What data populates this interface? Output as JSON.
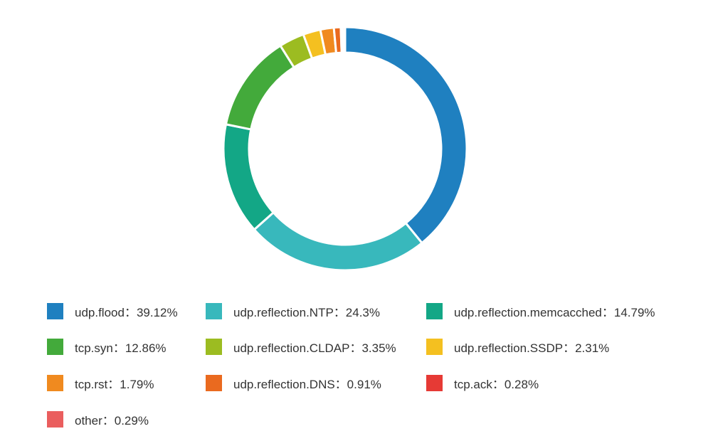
{
  "chart_data": {
    "type": "pie",
    "title": "",
    "categories": [
      "udp.flood",
      "udp.reflection.NTP",
      "udp.reflection.memcacched",
      "tcp.syn",
      "udp.reflection.CLDAP",
      "udp.reflection.SSDP",
      "tcp.rst",
      "udp.reflection.DNS",
      "tcp.ack",
      "other"
    ],
    "values": [
      39.12,
      24.3,
      14.79,
      12.86,
      3.35,
      2.31,
      1.79,
      0.91,
      0.28,
      0.29
    ],
    "colors": [
      "#1f80c0",
      "#38b8bc",
      "#13a786",
      "#43aa3b",
      "#9cbc21",
      "#f4c020",
      "#f08a1f",
      "#ea6a1f",
      "#e63a35",
      "#ea5e5e"
    ],
    "donut": true,
    "start_angle": "12 o'clock",
    "direction": "clockwise",
    "legend_position": "bottom"
  },
  "legend": {
    "items": [
      {
        "label": "udp.flood：39.12%"
      },
      {
        "label": "udp.reflection.NTP：24.3%"
      },
      {
        "label": "udp.reflection.memcacched：14.79%"
      },
      {
        "label": "tcp.syn：12.86%"
      },
      {
        "label": "udp.reflection.CLDAP：3.35%"
      },
      {
        "label": "udp.reflection.SSDP：2.31%"
      },
      {
        "label": "tcp.rst：1.79%"
      },
      {
        "label": "udp.reflection.DNS：0.91%"
      },
      {
        "label": "tcp.ack：0.28%"
      },
      {
        "label": "other：0.29%"
      }
    ]
  }
}
